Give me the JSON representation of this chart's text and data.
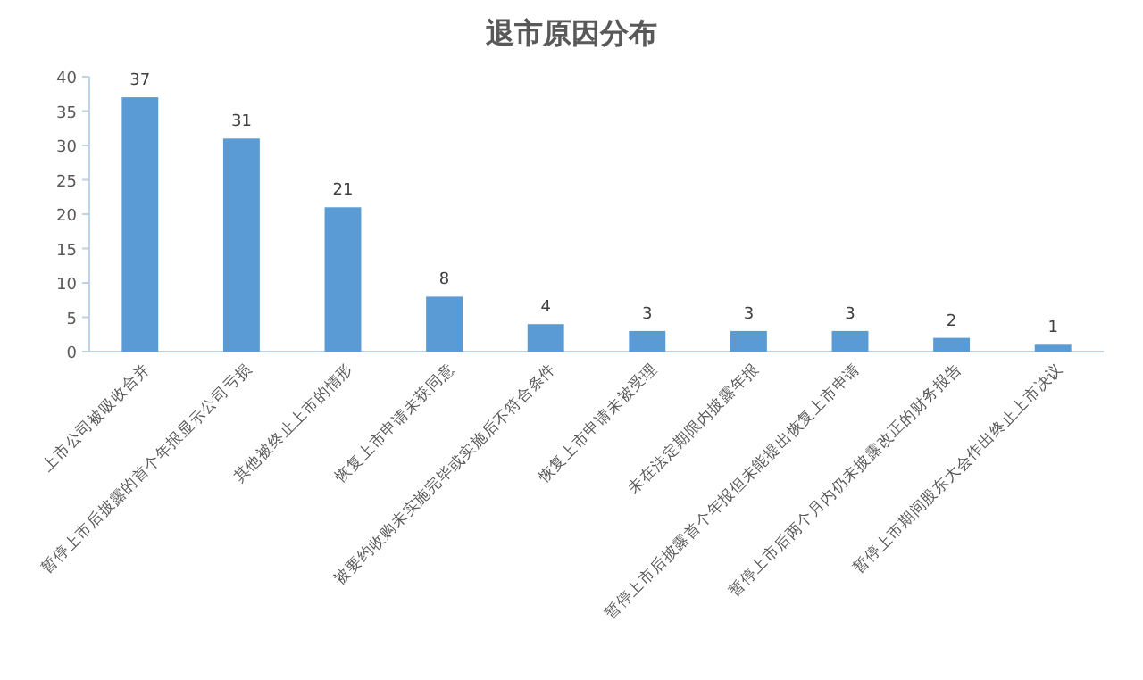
{
  "chart_data": {
    "type": "bar",
    "title": "退市原因分布",
    "categories": [
      "上市公司被吸收合并",
      "暂停上市后披露的首个年报显示公司亏损",
      "其他被终止上市的情形",
      "恢复上市申请未获同意",
      "被要约收购未实施完毕或实施后不符合条件",
      "恢复上市申请未被受理",
      "未在法定期限内披露年报",
      "暂停上市后披露首个年报但未能提出恢复上市申请",
      "暂停上市后两个月内仍未披露改正的财务报告",
      "暂停上市期间股东大会作出终止上市决议"
    ],
    "values": [
      37,
      31,
      21,
      8,
      4,
      3,
      3,
      3,
      2,
      1
    ],
    "color": "#5b9bd5",
    "ylim": [
      0,
      40
    ],
    "yticks": [
      0,
      5,
      10,
      15,
      20,
      25,
      30,
      35,
      40
    ],
    "data_labels": true
  }
}
